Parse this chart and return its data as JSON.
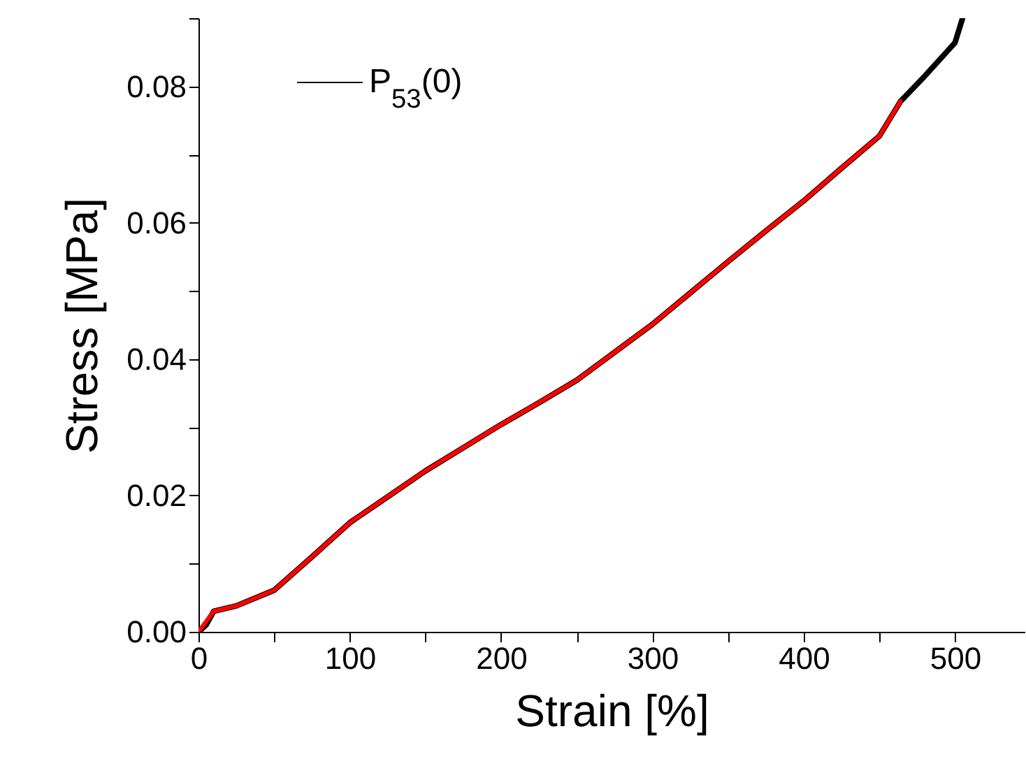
{
  "chart_data": {
    "type": "line",
    "xlabel": "Strain [%]",
    "ylabel": "Stress [MPa]",
    "xlim": [
      0,
      546
    ],
    "ylim": [
      0,
      0.09
    ],
    "xticks": [
      0,
      {
        "value": 50,
        "label": null
      },
      100,
      {
        "value": 150,
        "label": null
      },
      200,
      {
        "value": 250,
        "label": null
      },
      300,
      {
        "value": 350,
        "label": null
      },
      400,
      {
        "value": 450,
        "label": null
      },
      500
    ],
    "yticks": [
      {
        "value": 0,
        "label": "0.00"
      },
      {
        "value": 0.01,
        "label": null
      },
      0.02,
      {
        "value": 0.03,
        "label": null
      },
      0.04,
      {
        "value": 0.05,
        "label": null
      },
      0.06,
      {
        "value": 0.07,
        "label": null
      },
      0.08,
      {
        "value": 0.09,
        "label": null
      }
    ],
    "series": [
      {
        "name": "P$_{53}$(0)",
        "color": "#000000",
        "x": [
          0,
          5,
          10,
          25,
          50,
          75,
          100,
          125,
          150,
          175,
          200,
          225,
          250,
          275,
          300,
          325,
          350,
          375,
          400,
          425,
          450,
          464,
          480,
          500,
          505
        ],
        "values": [
          0,
          0.001,
          0.003,
          0.0038,
          0.0061,
          0.011,
          0.016,
          0.0198,
          0.0236,
          0.027,
          0.0304,
          0.0336,
          0.0369,
          0.041,
          0.0451,
          0.0497,
          0.0543,
          0.0588,
          0.0632,
          0.068,
          0.0727,
          0.0778,
          0.0815,
          0.0864,
          0.09
        ]
      },
      {
        "color": "#ff0000",
        "x": [
          0,
          5,
          10,
          25,
          50,
          75,
          100,
          125,
          150,
          175,
          200,
          225,
          250,
          275,
          300,
          325,
          350,
          375,
          400,
          425,
          450,
          464
        ],
        "values": [
          0,
          0.0015,
          0.003,
          0.0038,
          0.0061,
          0.011,
          0.016,
          0.0198,
          0.0236,
          0.027,
          0.0304,
          0.0336,
          0.0369,
          0.041,
          0.0451,
          0.0497,
          0.0543,
          0.0588,
          0.0632,
          0.068,
          0.0727,
          0.0778
        ]
      }
    ],
    "legend": "top left",
    "grid": false
  }
}
